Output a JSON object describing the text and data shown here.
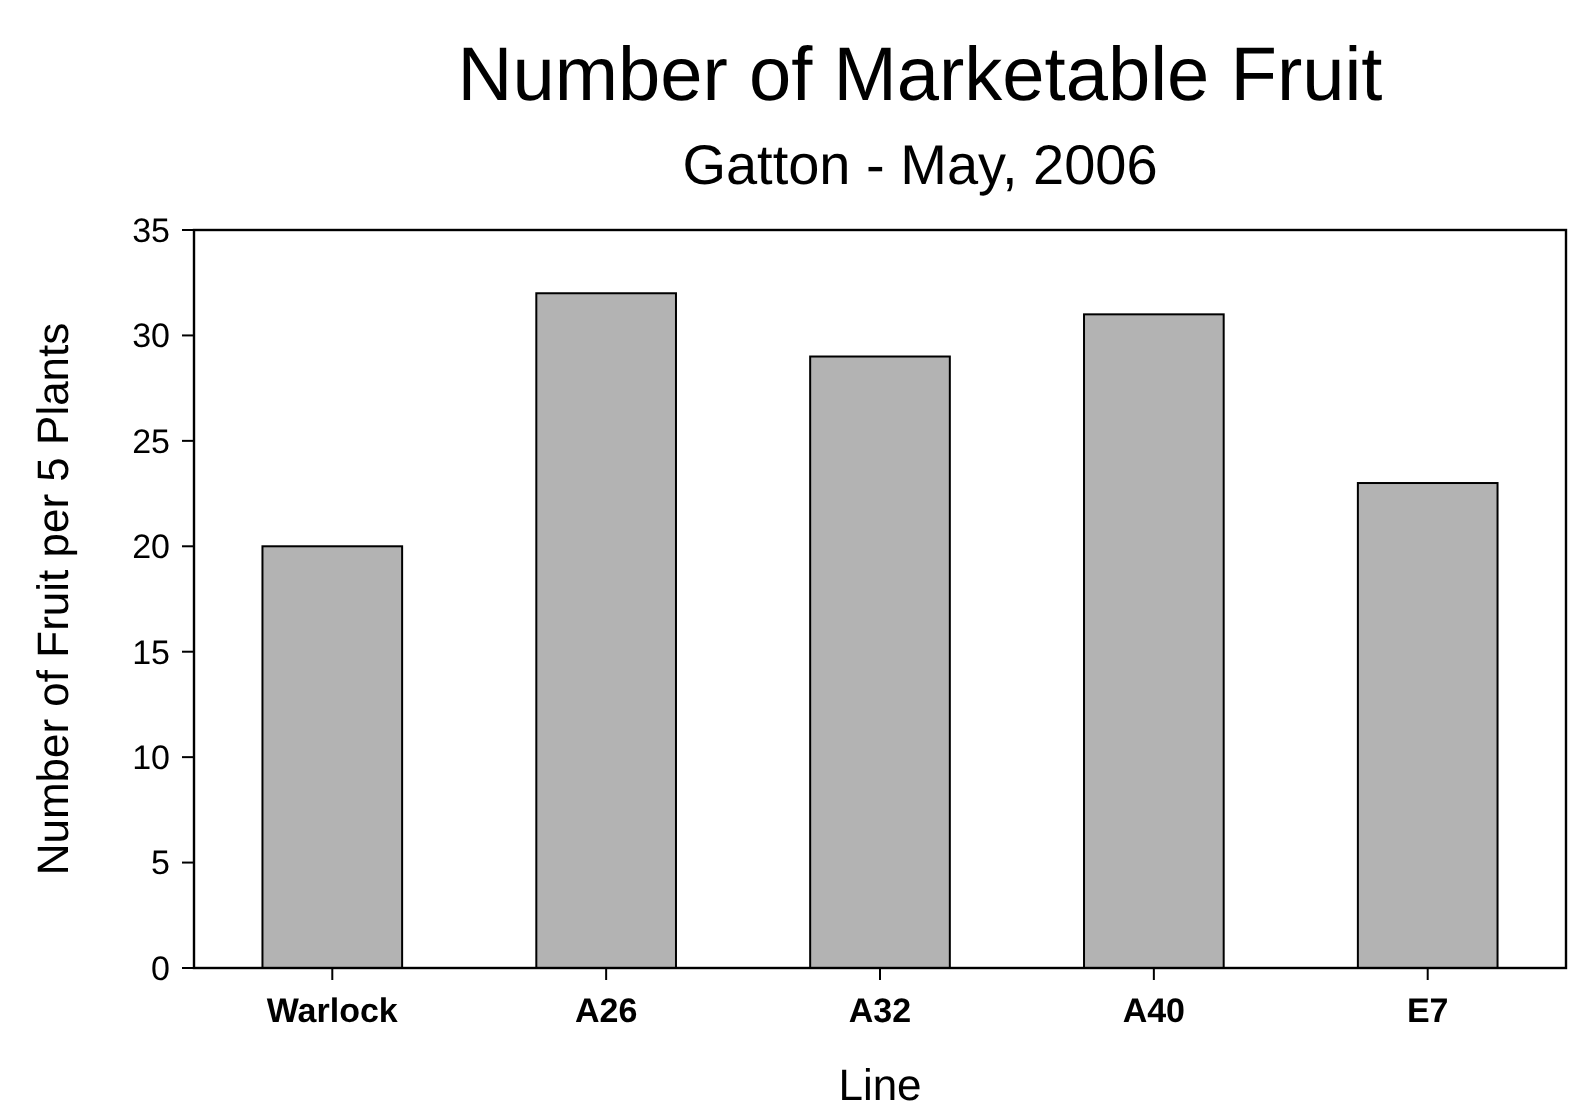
{
  "chart_data": {
    "type": "bar",
    "title": "Number of Marketable Fruit",
    "subtitle": "Gatton - May, 2006",
    "xlabel": "Line",
    "ylabel": "Number of Fruit per 5 Plants",
    "categories": [
      "Warlock",
      "A26",
      "A32",
      "A40",
      "E7"
    ],
    "values": [
      20,
      32,
      29,
      31,
      23
    ],
    "color": "#b3b3b3",
    "ylim": [
      0,
      35
    ],
    "yticks": [
      0,
      5,
      10,
      15,
      20,
      25,
      30,
      35
    ],
    "grid": false
  }
}
